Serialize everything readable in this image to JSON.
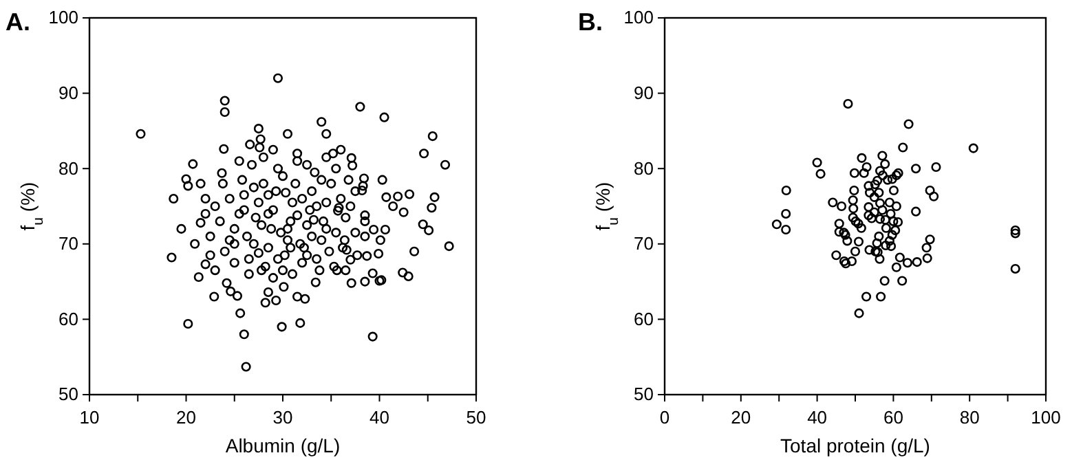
{
  "chart_data": [
    {
      "type": "scatter",
      "title": "A.",
      "xlabel": "Albumin (g/L)",
      "ylabel": "f$_{u}$ (%)",
      "marker": "circle",
      "color": "#000000",
      "xlim": [
        10,
        50
      ],
      "ylim": [
        50,
        100
      ],
      "xticks": [
        10,
        {
          "value": 15,
          "label": null
        },
        20,
        {
          "value": 25,
          "label": null
        },
        30,
        {
          "value": 35,
          "label": null
        },
        40,
        {
          "value": 45,
          "label": null
        },
        50
      ],
      "yticks": [
        50,
        60,
        70,
        80,
        90,
        100
      ],
      "x": [
        15.3,
        18.7,
        18.5,
        20.7,
        20.0,
        20.2,
        21.5,
        21.3,
        22.0,
        20.9,
        22.9,
        24.6,
        23.9,
        23.7,
        25.6,
        26.6,
        27.6,
        27.7,
        24.0,
        24.0,
        29.5,
        26.0,
        26.2,
        20.2,
        28.2,
        28.5,
        29.3,
        29.9,
        30.1,
        31.5,
        31.8,
        32.3,
        33.4,
        39.3,
        37.1,
        40.0,
        44.6,
        46.8,
        37.1,
        37.2,
        38.4,
        40.3,
        40.7,
        41.9,
        43.1,
        45.7,
        45.4,
        42.5,
        41.4,
        44.5,
        45.1,
        47.2,
        43.6,
        42.4,
        39.3,
        40.2,
        39.9,
        38.7,
        37.7,
        37.0,
        35.6,
        38.5,
        39.4,
        40.6,
        40.1,
        38.5,
        38.5,
        35.7,
        38.3,
        38.2,
        36.4,
        36.2,
        36.6,
        35.2,
        34.0,
        34.5,
        38.0,
        40.5,
        30.5,
        27.5,
        25.3,
        24.2,
        22.5,
        21.5,
        23.0,
        19.5,
        22.0,
        43.0,
        38.5,
        45.5,
        24.5,
        25.0,
        25.5,
        26.0,
        26.5,
        27.0,
        27.2,
        27.5,
        28.0,
        28.2,
        28.5,
        28.8,
        29.0,
        29.3,
        29.5,
        30.0,
        30.2,
        30.5,
        30.8,
        31.0,
        31.3,
        31.5,
        32.0,
        32.2,
        32.5,
        32.8,
        33.0,
        33.3,
        33.5,
        34.0,
        34.2,
        34.5,
        35.0,
        35.3,
        35.5,
        36.0,
        36.5,
        37.0,
        36.8,
        25.0,
        24.0,
        23.5,
        24.5,
        25.8,
        26.8,
        27.8,
        26.3,
        27.5,
        28.5,
        29.8,
        30.3,
        31.8,
        32.0,
        33.0,
        34.8,
        29.0,
        31.0,
        33.8,
        30.0,
        28.0,
        32.5,
        26.0,
        27.0,
        29.5,
        31.5,
        33.5,
        34.0,
        35.5,
        36.5,
        37.5,
        22.5,
        23.0,
        22.0,
        23.8,
        25.5,
        29.0,
        31.5,
        34.5,
        36.0,
        37.5,
        26.5,
        28.5,
        30.5,
        32.5,
        34.5,
        30.8,
        27.8,
        25.0,
        35.8,
        33.2
      ],
      "values": [
        84.6,
        76.0,
        68.2,
        80.6,
        78.6,
        77.7,
        78.0,
        65.6,
        67.3,
        70.0,
        63.0,
        63.7,
        82.6,
        79.4,
        60.8,
        83.2,
        82.8,
        83.9,
        87.5,
        89.0,
        92.0,
        58.0,
        53.7,
        59.4,
        62.2,
        63.6,
        62.5,
        59.0,
        64.3,
        63.0,
        59.5,
        62.7,
        64.9,
        57.7,
        64.8,
        65.1,
        82.0,
        80.5,
        81.4,
        80.4,
        78.7,
        78.5,
        76.2,
        76.3,
        76.6,
        76.2,
        74.8,
        74.2,
        75.0,
        72.6,
        71.8,
        69.7,
        69.0,
        66.2,
        66.1,
        65.2,
        68.7,
        68.4,
        68.5,
        67.9,
        66.5,
        71.0,
        71.9,
        71.9,
        70.5,
        73.8,
        73.0,
        74.4,
        77.7,
        77.1,
        70.5,
        69.5,
        69.2,
        82.0,
        86.2,
        84.6,
        88.2,
        86.8,
        84.6,
        85.3,
        63.1,
        64.8,
        71.0,
        72.8,
        75.0,
        72.0,
        76.0,
        65.7,
        65.0,
        84.3,
        70.5,
        72.0,
        74.0,
        76.5,
        68.0,
        70.0,
        73.5,
        75.5,
        78.0,
        67.0,
        69.5,
        72.0,
        74.5,
        77.0,
        80.0,
        66.5,
        68.5,
        70.5,
        73.0,
        75.5,
        78.0,
        81.0,
        67.5,
        69.5,
        72.5,
        74.5,
        77.0,
        79.5,
        68.0,
        70.5,
        73.0,
        75.5,
        78.0,
        67.0,
        71.5,
        76.0,
        73.5,
        75.0,
        78.5,
        67.5,
        69.0,
        73.0,
        76.0,
        78.5,
        80.5,
        66.5,
        71.0,
        68.8,
        76.5,
        71.5,
        76.8,
        70.0,
        76.0,
        71.0,
        69.0,
        65.5,
        66.0,
        66.5,
        79.0,
        81.5,
        80.5,
        74.5,
        77.5,
        68.0,
        73.8,
        75.0,
        78.5,
        80.0,
        66.5,
        71.5,
        68.5,
        66.5,
        74.0,
        78.0,
        81.0,
        82.5,
        82.0,
        81.5,
        82.5,
        77.0,
        66.0,
        74.0,
        72.0,
        68.5,
        72.0,
        69.5,
        72.5,
        70.0,
        74.8,
        73.2
      ]
    },
    {
      "type": "scatter",
      "title": "B.",
      "xlabel": "Total protein (g/L)",
      "ylabel": "f$_{u}$ (%)",
      "marker": "circle",
      "color": "#000000",
      "xlim": [
        0,
        100
      ],
      "ylim": [
        50,
        100
      ],
      "xticks": [
        0,
        {
          "value": 10,
          "label": null
        },
        20,
        {
          "value": 30,
          "label": null
        },
        40,
        {
          "value": 50,
          "label": null
        },
        60,
        {
          "value": 70,
          "label": null
        },
        80,
        {
          "value": 90,
          "label": null
        },
        100
      ],
      "yticks": [
        50,
        60,
        70,
        80,
        90,
        100
      ],
      "x": [
        48.1,
        64.0,
        81.0,
        62.5,
        40.0,
        40.9,
        51.7,
        57.1,
        57.8,
        53.0,
        49.8,
        52.3,
        56.5,
        57.2,
        65.9,
        71.2,
        61.3,
        60.8,
        59.7,
        58.5,
        55.2,
        53.5,
        55.8,
        49.7,
        56.2,
        60.1,
        69.6,
        70.6,
        31.9,
        44.1,
        46.4,
        49.4,
        49.5,
        53.5,
        56.5,
        57.1,
        55.0,
        59.3,
        65.9,
        31.8,
        29.4,
        31.8,
        45.8,
        49.4,
        50.1,
        50.8,
        51.6,
        53.5,
        54.3,
        56.5,
        57.9,
        60.0,
        61.2,
        58.1,
        60.5,
        45.8,
        47.4,
        47.0,
        47.9,
        50.9,
        56.2,
        59.7,
        59.0,
        55.7,
        58.0,
        59.4,
        69.6,
        68.7,
        53.7,
        55.3,
        55.9,
        50.0,
        49.1,
        47.1,
        47.5,
        45.0,
        56.4,
        61.7,
        63.7,
        66.2,
        68.9,
        60.8,
        57.7,
        62.3,
        52.9,
        56.7,
        51.0,
        92.0,
        92.0,
        92.0,
        55.0,
        59.0,
        60.8,
        53.8
      ],
      "values": [
        88.6,
        85.9,
        82.7,
        82.8,
        80.8,
        79.3,
        81.4,
        81.7,
        80.6,
        80.2,
        79.4,
        79.4,
        79.7,
        79.1,
        80.0,
        80.2,
        79.4,
        79.1,
        78.6,
        78.5,
        77.9,
        77.7,
        78.4,
        77.1,
        76.8,
        77.1,
        77.1,
        76.3,
        77.1,
        75.5,
        75.0,
        75.8,
        74.7,
        74.9,
        75.4,
        74.5,
        74.2,
        74.0,
        74.3,
        74.0,
        72.6,
        71.9,
        72.7,
        73.5,
        73.0,
        72.7,
        72.1,
        73.8,
        73.4,
        73.3,
        73.2,
        73.0,
        72.9,
        72.1,
        71.8,
        71.6,
        71.2,
        71.5,
        70.4,
        70.3,
        71.0,
        71.2,
        70.4,
        70.1,
        69.8,
        69.7,
        70.6,
        69.5,
        69.2,
        69.0,
        68.9,
        69.0,
        67.7,
        67.7,
        67.4,
        68.5,
        68.0,
        68.2,
        67.5,
        67.6,
        68.1,
        66.9,
        65.1,
        65.1,
        63.0,
        63.0,
        60.8,
        71.8,
        71.4,
        66.7,
        76.2,
        75.5,
        75.0,
        76.8
      ]
    }
  ]
}
